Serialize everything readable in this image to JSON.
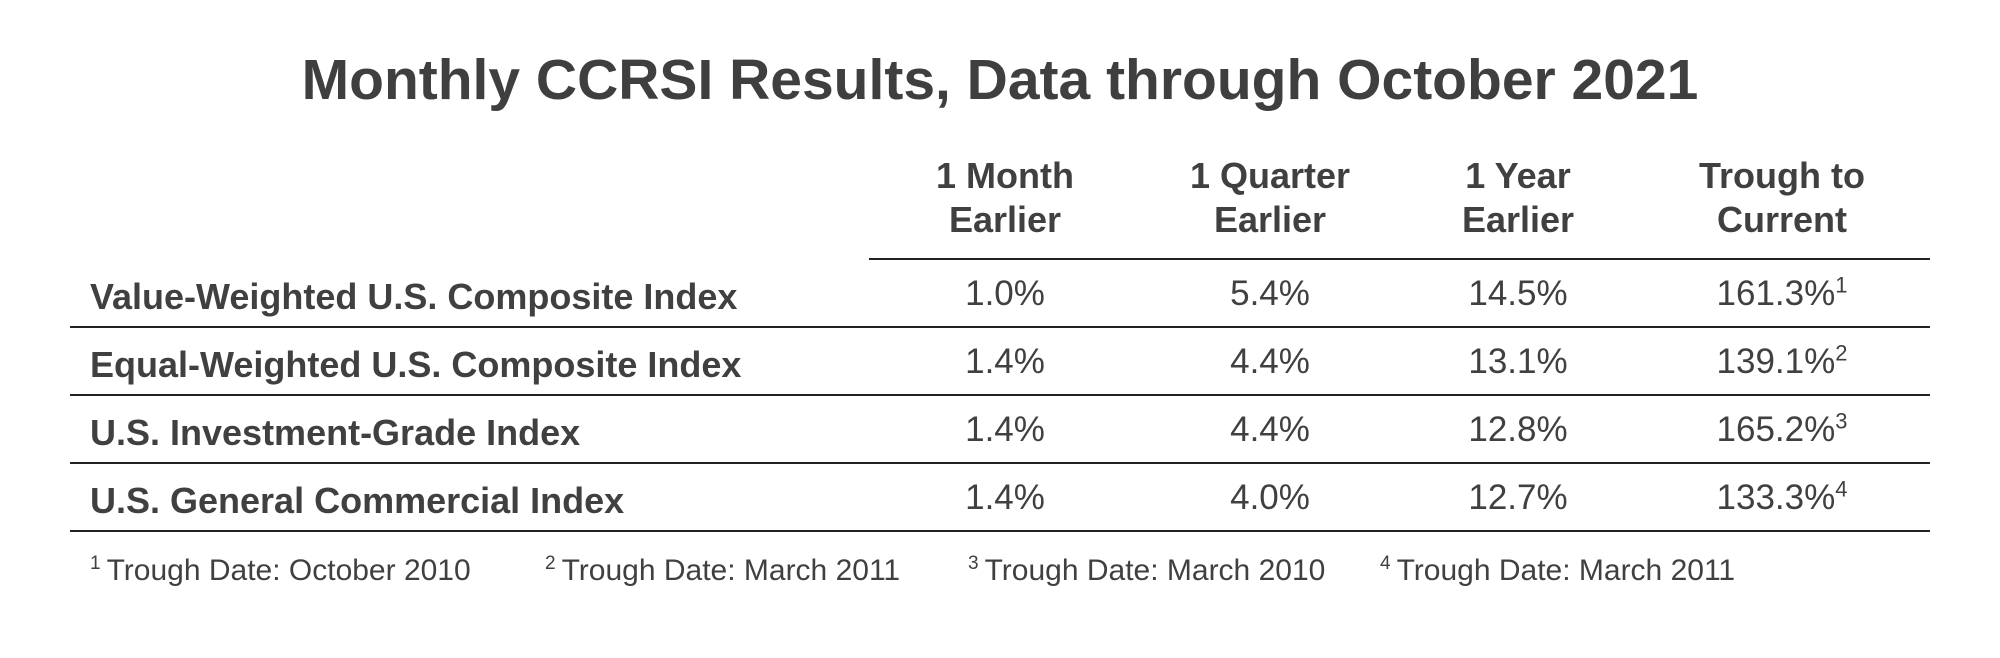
{
  "title": "Monthly CCRSI Results, Data through October 2021",
  "columns": [
    {
      "line1": "1 Month",
      "line2": "Earlier"
    },
    {
      "line1": "1 Quarter",
      "line2": "Earlier"
    },
    {
      "line1": "1 Year",
      "line2": "Earlier"
    },
    {
      "line1": "Trough to",
      "line2": "Current"
    }
  ],
  "rows": [
    {
      "label": "Value-Weighted U.S. Composite Index",
      "m1": "1.0%",
      "q1": "5.4%",
      "y1": "14.5%",
      "trough": "161.3%",
      "note": "1"
    },
    {
      "label": "Equal-Weighted U.S. Composite Index",
      "m1": "1.4%",
      "q1": "4.4%",
      "y1": "13.1%",
      "trough": "139.1%",
      "note": "2"
    },
    {
      "label": "U.S. Investment-Grade Index",
      "m1": "1.4%",
      "q1": "4.4%",
      "y1": "12.8%",
      "trough": "165.2%",
      "note": "3"
    },
    {
      "label": "U.S. General Commercial Index",
      "m1": "1.4%",
      "q1": "4.0%",
      "y1": "12.7%",
      "trough": "133.3%",
      "note": "4"
    }
  ],
  "footnotes": [
    {
      "num": "1",
      "text": "Trough Date: October 2010"
    },
    {
      "num": "2",
      "text": "Trough Date: March 2011"
    },
    {
      "num": "3",
      "text": "Trough Date: March 2010"
    },
    {
      "num": "4",
      "text": "Trough Date: March 2011"
    }
  ]
}
